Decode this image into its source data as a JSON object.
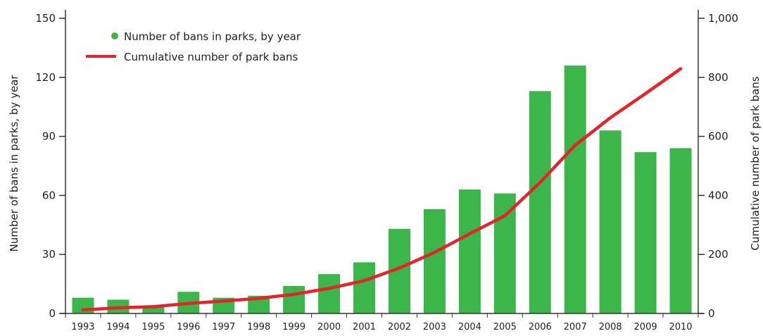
{
  "chart_data": {
    "type": "bar+line",
    "categories": [
      "1993",
      "1994",
      "1995",
      "1996",
      "1997",
      "1998",
      "1999",
      "2000",
      "2001",
      "2002",
      "2003",
      "2004",
      "2005",
      "2006",
      "2007",
      "2008",
      "2009",
      "2010"
    ],
    "series": [
      {
        "name": "Number of bans in parks, by year",
        "type": "bar",
        "axis": "left",
        "color": "#3cb54a",
        "values": [
          8,
          7,
          4,
          11,
          8,
          9,
          14,
          20,
          26,
          43,
          53,
          63,
          61,
          113,
          126,
          93,
          82,
          84
        ]
      },
      {
        "name": "Cumulative number of park bans",
        "type": "line",
        "axis": "right",
        "color": "#e3242b",
        "values": [
          12,
          19,
          23,
          34,
          42,
          51,
          65,
          85,
          111,
          154,
          207,
          270,
          331,
          444,
          570,
          663,
          745,
          829
        ]
      }
    ],
    "ylabel_left": "Number of bans in parks, by year",
    "ylabel_right": "Cumulative number of park bans",
    "ylim_left": [
      0,
      150
    ],
    "ylim_right": [
      0,
      1000
    ],
    "yticks_left": [
      "0",
      "30",
      "60",
      "90",
      "120",
      "150"
    ],
    "yticks_right": [
      "0",
      "200",
      "400",
      "600",
      "800",
      "1,000"
    ],
    "legend_position": "top-left",
    "grid": false
  }
}
